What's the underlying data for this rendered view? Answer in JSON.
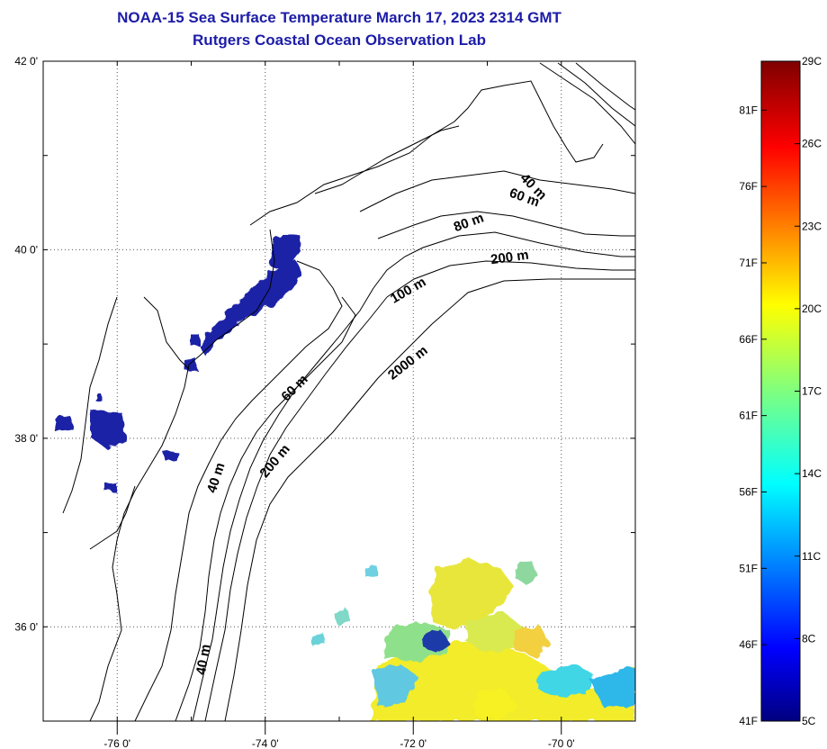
{
  "title": {
    "line1": "NOAA-15 Sea Surface Temperature March 17, 2023 2314 GMT",
    "line2": "Rutgers Coastal Ocean Observation Lab"
  },
  "map": {
    "lon_range": [
      -77.0,
      -69.0
    ],
    "lat_range": [
      35.0,
      42.0
    ],
    "lon_ticks": [
      {
        "value": -76,
        "label": "-76 0'"
      },
      {
        "value": -74,
        "label": "-74 0'"
      },
      {
        "value": -72,
        "label": "-72 0'"
      },
      {
        "value": -70,
        "label": "-70 0'"
      }
    ],
    "lat_ticks": [
      {
        "value": 42,
        "label": "42 0'"
      },
      {
        "value": 40,
        "label": "40 0'"
      },
      {
        "value": 38,
        "label": "38 0'"
      },
      {
        "value": 36,
        "label": "36 0'"
      }
    ],
    "grid": "dotted",
    "depth_labels": [
      "40 m",
      "60 m",
      "80 m",
      "200 m",
      "100 m",
      "2000 m",
      "60 m",
      "200 m",
      "40 m",
      "40 m"
    ]
  },
  "colorbar": {
    "celsius": [
      {
        "value": 29,
        "label": "29C"
      },
      {
        "value": 26,
        "label": "26C"
      },
      {
        "value": 23,
        "label": "23C"
      },
      {
        "value": 20,
        "label": "20C"
      },
      {
        "value": 17,
        "label": "17C"
      },
      {
        "value": 14,
        "label": "14C"
      },
      {
        "value": 11,
        "label": "11C"
      },
      {
        "value": 8,
        "label": "8C"
      },
      {
        "value": 5,
        "label": "5C"
      }
    ],
    "fahrenheit": [
      {
        "value": 81,
        "label": "81F"
      },
      {
        "value": 76,
        "label": "76F"
      },
      {
        "value": 71,
        "label": "71F"
      },
      {
        "value": 66,
        "label": "66F"
      },
      {
        "value": 61,
        "label": "61F"
      },
      {
        "value": 56,
        "label": "56F"
      },
      {
        "value": 51,
        "label": "51F"
      },
      {
        "value": 46,
        "label": "46F"
      },
      {
        "value": 41,
        "label": "41F"
      }
    ]
  },
  "colors": {
    "title": "#1c1ca8",
    "cold_water": "#1a23a6",
    "warm_water": "#e8e020"
  }
}
